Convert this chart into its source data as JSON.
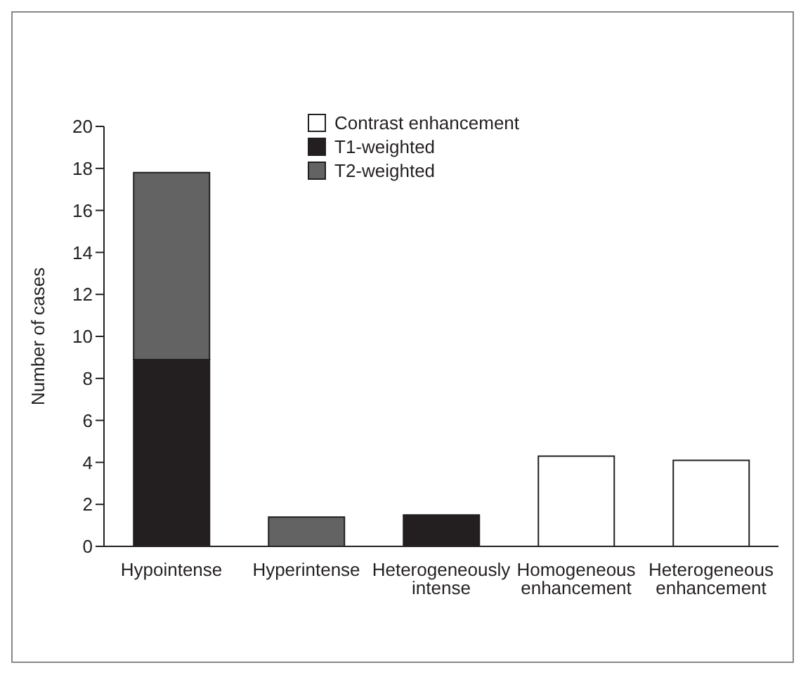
{
  "chart_data": {
    "type": "bar",
    "stacked": true,
    "ylabel": "Number of cases",
    "categories": [
      "Hypointense",
      "Hyperintense",
      "Heterogeneously intense",
      "Homogeneous enhancement",
      "Heterogeneous enhancement"
    ],
    "series": [
      {
        "name": "T1-weighted",
        "color": "#231f20",
        "values": [
          8.9,
          null,
          1.5,
          null,
          null
        ]
      },
      {
        "name": "T2-weighted",
        "color": "#636363",
        "values": [
          8.9,
          1.4,
          null,
          null,
          null
        ]
      },
      {
        "name": "Contrast enhancement",
        "color": "#ffffff",
        "values": [
          null,
          null,
          null,
          4.3,
          4.1
        ]
      }
    ],
    "ylim": [
      0,
      20
    ],
    "yticks": [
      0,
      2,
      4,
      6,
      8,
      10,
      12,
      14,
      16,
      18,
      20
    ],
    "grid": false,
    "legend": "top"
  }
}
